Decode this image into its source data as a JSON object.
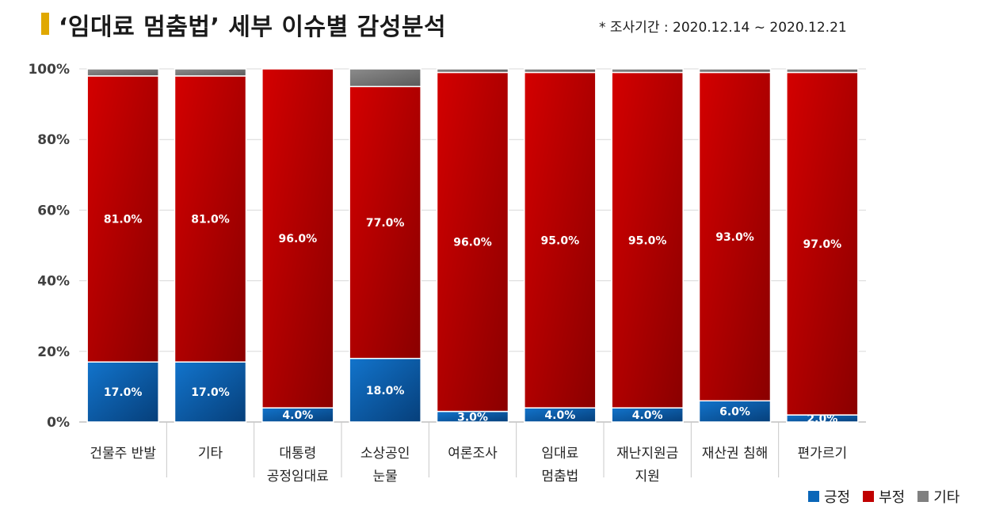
{
  "header": {
    "title": "‘임대료 멈춤법’ 세부 이슈별 감성분석",
    "period": "* 조사기간 : 2020.12.14 ~ 2020.12.21"
  },
  "colors": {
    "positive": "#0a66b8",
    "negative": "#c00000",
    "other": "#808080",
    "grid": "#d9d9d9"
  },
  "chart_data": {
    "type": "bar",
    "stacked": true,
    "percent": true,
    "ylim": [
      0,
      100
    ],
    "yticks": [
      "0%",
      "20%",
      "40%",
      "60%",
      "80%",
      "100%"
    ],
    "grid": true,
    "legend_position": "bottom-right",
    "categories": [
      [
        "건물주 반발"
      ],
      [
        "기타"
      ],
      [
        "대통령",
        "공정임대료"
      ],
      [
        "소상공인",
        "눈물"
      ],
      [
        "여론조사"
      ],
      [
        "임대료",
        "멈춤법"
      ],
      [
        "재난지원금",
        "지원"
      ],
      [
        "재산권 침해"
      ],
      [
        "편가르기"
      ]
    ],
    "series": [
      {
        "name": "긍정",
        "values": [
          17,
          17,
          4,
          18,
          3,
          4,
          4,
          6,
          2
        ],
        "labels": [
          "17.0%",
          "17.0%",
          "4.0%",
          "18.0%",
          "3.0%",
          "4.0%",
          "4.0%",
          "6.0%",
          "2.0%"
        ]
      },
      {
        "name": "부정",
        "values": [
          81,
          81,
          96,
          77,
          96,
          95,
          95,
          93,
          97
        ],
        "labels": [
          "81.0%",
          "81.0%",
          "96.0%",
          "77.0%",
          "96.0%",
          "95.0%",
          "95.0%",
          "93.0%",
          "97.0%"
        ]
      },
      {
        "name": "기타",
        "values": [
          2,
          2,
          0,
          5,
          1,
          1,
          1,
          1,
          1
        ]
      }
    ]
  }
}
